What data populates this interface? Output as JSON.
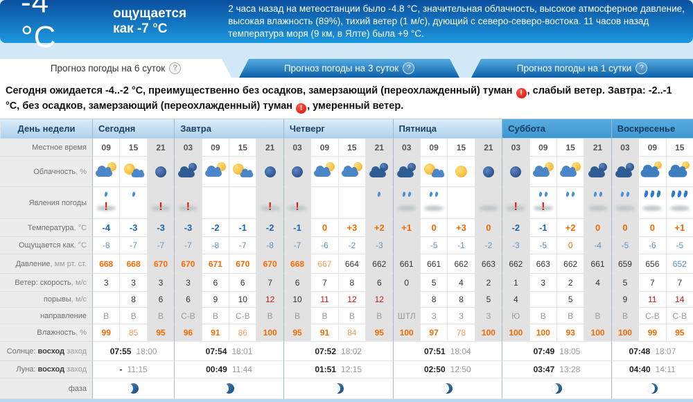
{
  "colors": {
    "accent_blue": "#1c97de",
    "warn_red": "#d40b00",
    "temp_negative": "#1a66ad",
    "temp_positive": "#f26a00",
    "pressure_high": "#ff6a00",
    "pressure_low": "#4f8fd0"
  },
  "header": {
    "temp_big": "-4 °C",
    "feels": "ощущается как -7 °C",
    "info": "2 часа назад на метеостанции было -4.8 °C, значительная облачность, высокое атмосферное давление, высокая влажность (89%), тихий ветер (1 м/с), дующий с северо-северо-востока. 11 часов назад температура моря (9 км, в Ялте) была +9 °C."
  },
  "tabs": [
    {
      "label": "Прогноз погоды на 6 суток",
      "help": "?",
      "active": true
    },
    {
      "label": "Прогноз погоды на 3 суток",
      "help": "?",
      "active": false
    },
    {
      "label": "Прогноз погоды на 1 сутки",
      "help": "?",
      "active": false
    }
  ],
  "summary_segments": [
    {
      "text": "Сегодня ожидается -4..-2 °С, преимущественно без осадков, замерзающий (переохлажденный) туман "
    },
    {
      "warn": true
    },
    {
      "text": ", слабый ветер. Завтра: -2..-1 °С, без осадков, замерзающий (переохлажденный) туман "
    },
    {
      "warn": true
    },
    {
      "text": ", умеренный ветер."
    }
  ],
  "table": {
    "corner_label": "День недели",
    "labels": {
      "time": "Местное время",
      "clouds": "Облачность",
      "clouds_unit": ", %",
      "phenomena": "Явления погоды",
      "temp": "Температура",
      "temp_unit": ", °C",
      "feels": "Ощущается как",
      "feels_unit": ", °C",
      "pressure": "Давление",
      "pressure_unit": ", мм рт. ст.",
      "wind": "Ветер: скорость",
      "wind_unit": ", м/с",
      "gust": "порывы",
      "gust_unit": ", м/с",
      "dir": "направление",
      "humidity": "Влажность",
      "humidity_unit": ", %",
      "sun_prefix": "Солнце: ",
      "sun_rise": "восход",
      "sun_set": " заход",
      "moon_prefix": "Луна: ",
      "moon_rise": "восход",
      "moon_set": " заход",
      "phase": "фаза"
    },
    "days": [
      {
        "name": "Сегодня",
        "weekend": false,
        "sun_rise": "07:55",
        "sun_set": "18:00",
        "moon_rise": "-",
        "moon_set": "11:15",
        "phase": "half",
        "cols": [
          {
            "time": "09",
            "night": false,
            "icon": "cloud-sun",
            "drops": 1,
            "warn": true,
            "fog": true,
            "temp": "-4",
            "feels": "-8",
            "pressure": "668",
            "wind": "3",
            "gust": "",
            "dir": "В",
            "humidity": "99"
          },
          {
            "time": "15",
            "night": false,
            "icon": "sun-cloud",
            "drops": 1,
            "warn": false,
            "fog": false,
            "temp": "-3",
            "feels": "-7",
            "pressure": "668",
            "wind": "3",
            "gust": "8",
            "dir": "В",
            "humidity": "85"
          },
          {
            "time": "21",
            "night": true,
            "icon": "night-moon",
            "drops": 0,
            "warn": true,
            "fog": true,
            "temp": "-3",
            "feels": "-7",
            "pressure": "670",
            "wind": "3",
            "gust": "6",
            "dir": "В",
            "humidity": "95"
          }
        ]
      },
      {
        "name": "Завтра",
        "weekend": false,
        "sun_rise": "07:54",
        "sun_set": "18:01",
        "moon_rise": "00:49",
        "moon_set": "11:44",
        "phase": "half",
        "cols": [
          {
            "time": "03",
            "night": true,
            "icon": "night-cloud",
            "drops": 0,
            "warn": true,
            "fog": true,
            "temp": "-3",
            "feels": "-7",
            "pressure": "670",
            "wind": "3",
            "gust": "6",
            "dir": "С-В",
            "humidity": "96"
          },
          {
            "time": "09",
            "night": false,
            "icon": "cloud-sun",
            "drops": 0,
            "warn": false,
            "fog": false,
            "temp": "-2",
            "feels": "-8",
            "pressure": "671",
            "wind": "6",
            "gust": "9",
            "dir": "В",
            "humidity": "91"
          },
          {
            "time": "15",
            "night": false,
            "icon": "sun-cloud",
            "drops": 0,
            "warn": false,
            "fog": false,
            "temp": "-1",
            "feels": "-7",
            "pressure": "670",
            "wind": "6",
            "gust": "10",
            "dir": "С-В",
            "humidity": "86"
          },
          {
            "time": "21",
            "night": true,
            "icon": "night-moon",
            "drops": 0,
            "warn": true,
            "fog": true,
            "temp": "-2",
            "feels": "-8",
            "pressure": "670",
            "wind": "7",
            "gust": "12",
            "dir": "В",
            "humidity": "100"
          }
        ]
      },
      {
        "name": "Четверг",
        "weekend": false,
        "sun_rise": "07:52",
        "sun_set": "18:02",
        "moon_rise": "01:51",
        "moon_set": "12:15",
        "phase": "cres",
        "cols": [
          {
            "time": "03",
            "night": true,
            "icon": "night-moon",
            "drops": 0,
            "warn": true,
            "fog": true,
            "temp": "-1",
            "feels": "-7",
            "pressure": "668",
            "wind": "6",
            "gust": "10",
            "dir": "В",
            "humidity": "95"
          },
          {
            "time": "09",
            "night": false,
            "icon": "cloud-sun",
            "drops": 0,
            "warn": false,
            "fog": false,
            "temp": "0",
            "feels": "-6",
            "pressure": "667",
            "wind": "7",
            "gust": "11",
            "dir": "В",
            "humidity": "91"
          },
          {
            "time": "15",
            "night": false,
            "icon": "cloud-sun",
            "drops": 0,
            "warn": false,
            "fog": false,
            "temp": "+3",
            "feels": "-2",
            "pressure": "664",
            "wind": "8",
            "gust": "12",
            "dir": "В",
            "humidity": "84"
          },
          {
            "time": "21",
            "night": true,
            "icon": "night-cloud",
            "drops": 1,
            "warn": false,
            "fog": false,
            "temp": "+2",
            "feels": "-3",
            "pressure": "662",
            "wind": "6",
            "gust": "12",
            "dir": "В",
            "humidity": "95"
          }
        ]
      },
      {
        "name": "Пятница",
        "weekend": false,
        "sun_rise": "07:51",
        "sun_set": "18:04",
        "moon_rise": "02:50",
        "moon_set": "12:50",
        "phase": "cres",
        "cols": [
          {
            "time": "03",
            "night": true,
            "icon": "night-cloud",
            "drops": 2,
            "warn": false,
            "fog": true,
            "temp": "+1",
            "feels": "",
            "pressure": "661",
            "wind": "0",
            "gust": "",
            "dir": "ШТЛ",
            "humidity": "100"
          },
          {
            "time": "09",
            "night": false,
            "icon": "sun-cloud",
            "drops": 2,
            "warn": false,
            "fog": true,
            "temp": "0",
            "feels": "-5",
            "pressure": "661",
            "wind": "5",
            "gust": "8",
            "dir": "З",
            "humidity": "97"
          },
          {
            "time": "15",
            "night": false,
            "icon": "sun",
            "drops": 0,
            "warn": false,
            "fog": false,
            "temp": "+3",
            "feels": "-1",
            "pressure": "662",
            "wind": "4",
            "gust": "8",
            "dir": "З",
            "humidity": "78"
          },
          {
            "time": "21",
            "night": true,
            "icon": "night-moon",
            "drops": 0,
            "warn": false,
            "fog": true,
            "temp": "0",
            "feels": "-2",
            "pressure": "663",
            "wind": "2",
            "gust": "5",
            "dir": "З",
            "humidity": "100"
          }
        ]
      },
      {
        "name": "Суббота",
        "weekend": true,
        "sun_rise": "07:49",
        "sun_set": "18:05",
        "moon_rise": "03:47",
        "moon_set": "13:28",
        "phase": "cres",
        "cols": [
          {
            "time": "03",
            "night": true,
            "icon": "night-moon",
            "drops": 0,
            "warn": true,
            "fog": true,
            "temp": "-2",
            "feels": "-3",
            "pressure": "662",
            "wind": "1",
            "gust": "4",
            "dir": "Ю",
            "humidity": "100"
          },
          {
            "time": "09",
            "night": false,
            "icon": "cloud-sun",
            "drops": 2,
            "warn": true,
            "fog": true,
            "temp": "-1",
            "feels": "-5",
            "pressure": "663",
            "wind": "3",
            "gust": "",
            "dir": "В",
            "humidity": "100"
          },
          {
            "time": "15",
            "night": false,
            "icon": "cloud-sun",
            "drops": 2,
            "warn": false,
            "fog": false,
            "temp": "+2",
            "feels": "0",
            "pressure": "662",
            "wind": "2",
            "gust": "5",
            "dir": "В",
            "humidity": "93"
          },
          {
            "time": "21",
            "night": true,
            "icon": "night-cloud",
            "drops": 2,
            "warn": false,
            "fog": true,
            "temp": "0",
            "feels": "-4",
            "pressure": "661",
            "wind": "4",
            "gust": "",
            "dir": "В",
            "humidity": "100"
          }
        ]
      },
      {
        "name": "Воскресенье",
        "weekend": true,
        "sun_rise": "07:48",
        "sun_set": "18:07",
        "moon_rise": "04:40",
        "moon_set": "14:11",
        "phase": "thin",
        "cols": [
          {
            "time": "03",
            "night": true,
            "icon": "night-cloud",
            "drops": 2,
            "warn": false,
            "fog": true,
            "temp": "0",
            "feels": "-5",
            "pressure": "659",
            "wind": "5",
            "gust": "9",
            "dir": "В",
            "humidity": "100"
          },
          {
            "time": "09",
            "night": false,
            "icon": "rain-cloud",
            "drops": 3,
            "warn": false,
            "fog": true,
            "temp": "0",
            "feels": "-6",
            "pressure": "656",
            "wind": "7",
            "gust": "11",
            "dir": "С-В",
            "humidity": "99"
          },
          {
            "time": "15",
            "night": false,
            "icon": "rain-cloud",
            "drops": 3,
            "warn": false,
            "fog": true,
            "temp": "+1",
            "feels": "-5",
            "pressure": "652",
            "wind": "7",
            "gust": "14",
            "dir": "С-В",
            "humidity": "95"
          }
        ]
      }
    ]
  }
}
